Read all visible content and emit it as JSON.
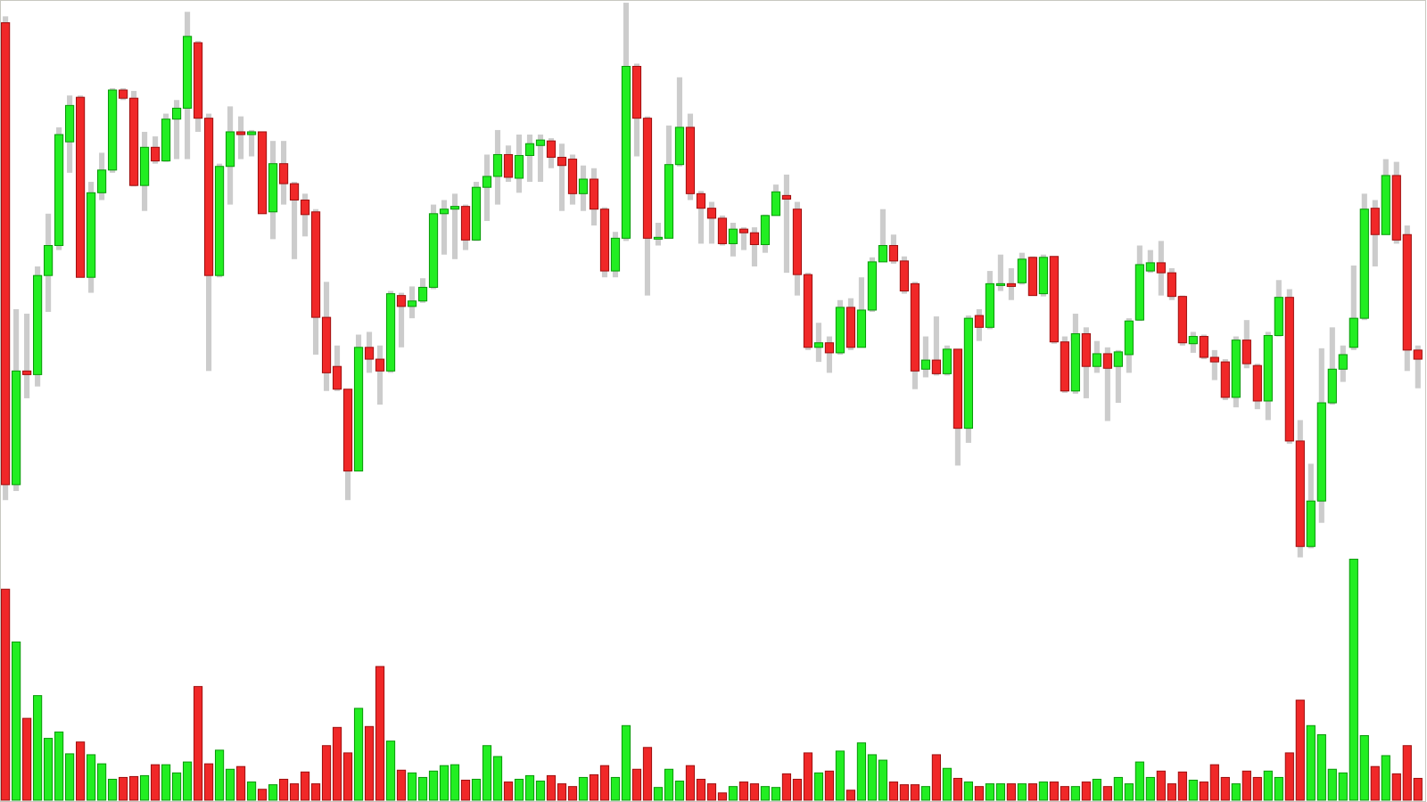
{
  "chart_data": {
    "type": "candlestick",
    "open": [
      875,
      367,
      492,
      488,
      597,
      630,
      744,
      793,
      595,
      688,
      713,
      801,
      792,
      696,
      738,
      723,
      769,
      781,
      853,
      770,
      597,
      717,
      755,
      752,
      755,
      667,
      720,
      698,
      680,
      667,
      551,
      497,
      472,
      382,
      518,
      505,
      492,
      575,
      563,
      569,
      584,
      665,
      670,
      673,
      636,
      694,
      706,
      730,
      704,
      729,
      740,
      745,
      727,
      725,
      687,
      703,
      670,
      602,
      638,
      827,
      770,
      637,
      638,
      719,
      760,
      687,
      671,
      660,
      632,
      648,
      644,
      631,
      663,
      685,
      670,
      598,
      518,
      523,
      512,
      562,
      518,
      559,
      612,
      630,
      613,
      588,
      494,
      504,
      489,
      516,
      429,
      553,
      540,
      586,
      588,
      589,
      617,
      577,
      618,
      524,
      470,
      533,
      497,
      511,
      497,
      510,
      548,
      602,
      611,
      600,
      574,
      522,
      530,
      507,
      502,
      463,
      526,
      498,
      459,
      531,
      573,
      415,
      299,
      349,
      457,
      494,
      518,
      550,
      671,
      642,
      707,
      642,
      515
    ],
    "high": [
      882,
      560,
      555,
      607,
      665,
      760,
      795,
      795,
      700,
      732,
      803,
      803,
      800,
      755,
      750,
      775,
      790,
      887,
      855,
      775,
      720,
      783,
      772,
      757,
      755,
      745,
      745,
      700,
      687,
      670,
      590,
      520,
      472,
      532,
      535,
      520,
      580,
      578,
      585,
      594,
      675,
      680,
      687,
      675,
      700,
      730,
      757,
      740,
      752,
      752,
      752,
      748,
      742,
      730,
      718,
      715,
      672,
      645,
      897,
      830,
      772,
      655,
      762,
      815,
      775,
      690,
      678,
      663,
      655,
      650,
      650,
      664,
      697,
      708,
      678,
      600,
      545,
      530,
      570,
      572,
      595,
      617,
      670,
      642,
      618,
      590,
      530,
      552,
      520,
      516,
      553,
      560,
      602,
      620,
      605,
      622,
      618,
      620,
      618,
      530,
      555,
      540,
      525,
      518,
      515,
      550,
      630,
      625,
      635,
      605,
      575,
      535,
      532,
      515,
      505,
      530,
      548,
      500,
      535,
      592,
      582,
      438,
      390,
      517,
      540,
      520,
      608,
      687,
      680,
      725,
      722,
      652,
      520
    ],
    "low": [
      350,
      360,
      462,
      475,
      557,
      625,
      710,
      595,
      578,
      680,
      710,
      790,
      695,
      668,
      720,
      722,
      725,
      725,
      755,
      492,
      595,
      675,
      725,
      728,
      665,
      637,
      675,
      615,
      640,
      510,
      470,
      470,
      350,
      382,
      490,
      455,
      490,
      518,
      550,
      567,
      582,
      620,
      615,
      625,
      635,
      657,
      675,
      700,
      688,
      700,
      700,
      715,
      668,
      675,
      668,
      652,
      595,
      595,
      635,
      728,
      575,
      630,
      638,
      717,
      680,
      632,
      632,
      630,
      618,
      625,
      607,
      622,
      663,
      600,
      575,
      515,
      502,
      490,
      510,
      515,
      518,
      557,
      612,
      610,
      577,
      472,
      485,
      487,
      487,
      388,
      413,
      525,
      538,
      580,
      570,
      587,
      575,
      574,
      522,
      468,
      467,
      462,
      490,
      437,
      457,
      490,
      547,
      600,
      575,
      570,
      520,
      512,
      505,
      482,
      460,
      452,
      495,
      450,
      438,
      530,
      412,
      287,
      297,
      325,
      455,
      480,
      515,
      548,
      607,
      642,
      632,
      492,
      473
    ],
    "close": [
      367,
      492,
      488,
      597,
      630,
      752,
      784,
      595,
      688,
      713,
      801,
      792,
      696,
      738,
      723,
      769,
      781,
      860,
      770,
      597,
      717,
      755,
      752,
      755,
      665,
      720,
      698,
      680,
      664,
      551,
      490,
      472,
      382,
      518,
      505,
      492,
      577,
      563,
      569,
      584,
      665,
      670,
      673,
      636,
      694,
      706,
      730,
      705,
      729,
      742,
      746,
      727,
      718,
      687,
      703,
      670,
      602,
      638,
      827,
      770,
      638,
      639,
      719,
      760,
      687,
      671,
      660,
      632,
      648,
      644,
      631,
      663,
      689,
      681,
      598,
      518,
      523,
      512,
      562,
      518,
      559,
      612,
      630,
      613,
      580,
      492,
      504,
      489,
      516,
      429,
      550,
      540,
      588,
      588,
      585,
      615,
      575,
      617,
      524,
      470,
      533,
      497,
      511,
      495,
      513,
      547,
      609,
      611,
      600,
      574,
      523,
      530,
      507,
      502,
      463,
      526,
      500,
      459,
      531,
      573,
      415,
      299,
      349,
      457,
      494,
      510,
      550,
      670,
      642,
      707,
      636,
      515,
      505
    ],
    "volume": [
      232,
      174,
      90,
      115,
      68,
      75,
      51,
      64,
      50,
      40,
      23,
      25,
      26,
      27,
      39,
      39,
      30,
      42,
      125,
      40,
      55,
      34,
      37,
      20,
      12,
      17,
      23,
      18,
      31,
      18,
      60,
      80,
      52,
      101,
      81,
      147,
      65,
      33,
      30,
      25,
      32,
      38,
      39,
      22,
      23,
      60,
      48,
      20,
      23,
      27,
      21,
      27,
      18,
      15,
      25,
      28,
      38,
      25,
      82,
      34,
      58,
      14,
      34,
      21,
      38,
      23,
      18,
      8,
      15,
      20,
      18,
      15,
      14,
      29,
      23,
      52,
      30,
      32,
      54,
      11,
      63,
      50,
      44,
      20,
      17,
      17,
      15,
      50,
      35,
      24,
      20,
      15,
      18,
      18,
      18,
      18,
      18,
      20,
      20,
      15,
      15,
      20,
      23,
      15,
      25,
      18,
      42,
      25,
      32,
      18,
      31,
      22,
      20,
      39,
      25,
      18,
      32,
      25,
      32,
      25,
      52,
      110,
      82,
      72,
      34,
      30,
      265,
      71,
      37,
      49,
      29,
      60,
      24
    ],
    "up_color": "#22ee22",
    "down_color": "#f02828",
    "wick_color": "#cccccc"
  }
}
